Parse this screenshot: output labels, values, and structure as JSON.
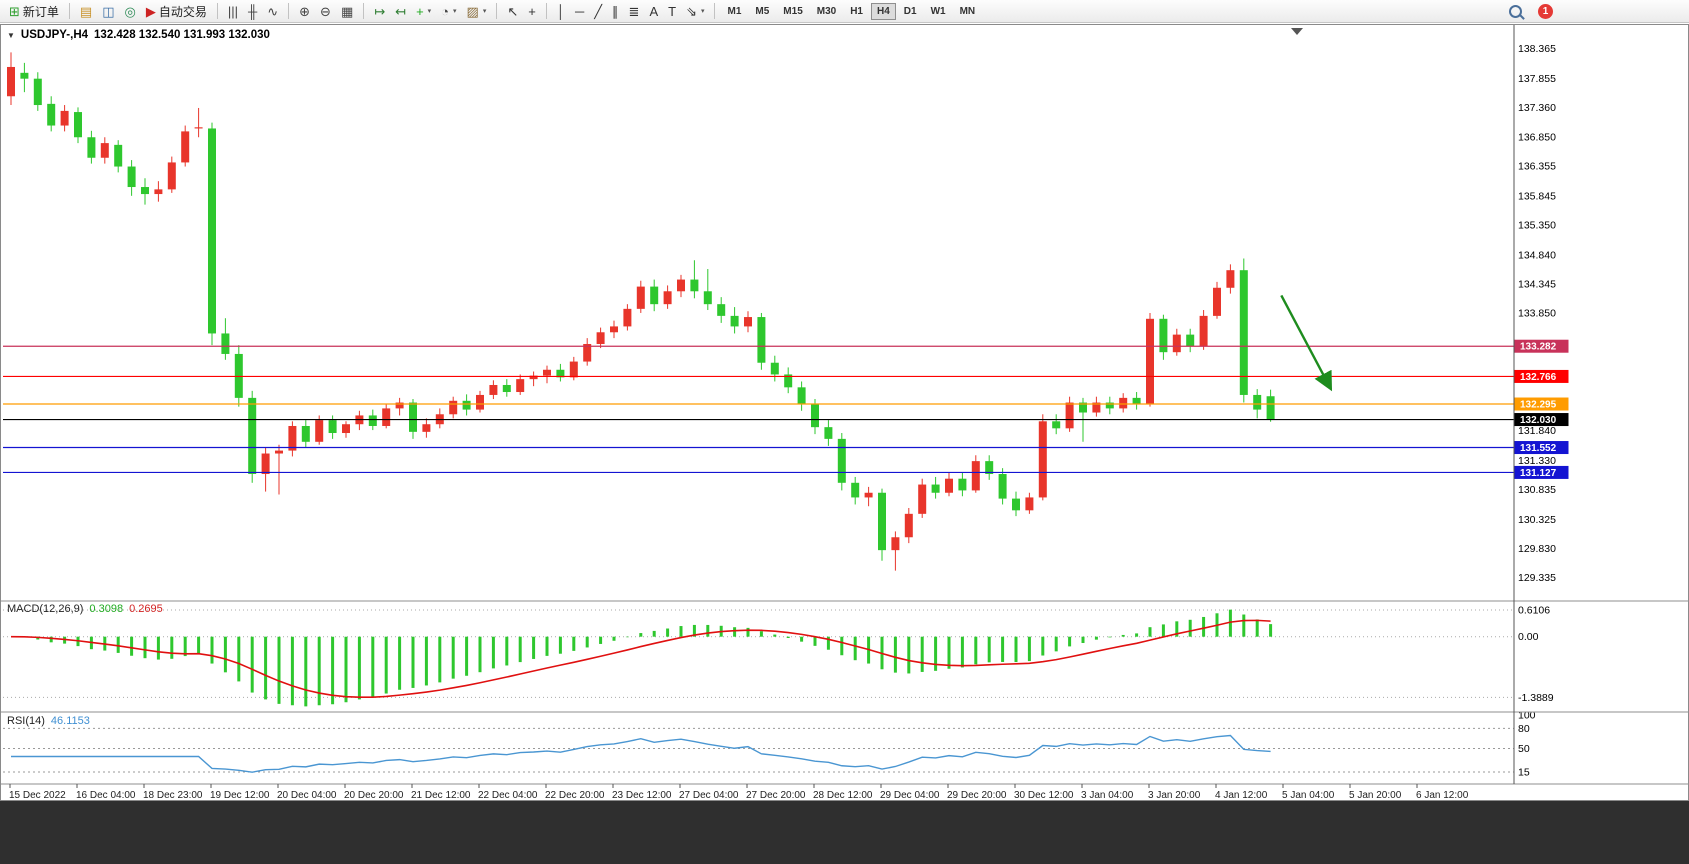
{
  "toolbar": {
    "badge_count": "1",
    "timeframes": [
      "M1",
      "M5",
      "M15",
      "M30",
      "H1",
      "H4",
      "D1",
      "W1",
      "MN"
    ],
    "active_timeframe": "H4",
    "items": [
      {
        "type": "button",
        "name": "new-order-button",
        "glyph": "⊞",
        "glyph_color": "#2e9e2e",
        "label": "新订单"
      },
      {
        "type": "sep"
      },
      {
        "type": "button",
        "name": "chart-profile-button",
        "glyph": "▤",
        "glyph_color": "#c8922a"
      },
      {
        "type": "button",
        "name": "market-watch-button",
        "glyph": "◫",
        "glyph_color": "#3a6ea5"
      },
      {
        "type": "button",
        "name": "navigator-button",
        "glyph": "◎",
        "glyph_color": "#2e8b57"
      },
      {
        "type": "button",
        "name": "autotrade-button",
        "glyph": "▶",
        "glyph_color": "#cc2222",
        "label": "自动交易"
      },
      {
        "type": "sep"
      },
      {
        "type": "button",
        "name": "bar-chart-button",
        "glyph": "|||",
        "glyph_color": "#444"
      },
      {
        "type": "button",
        "name": "candlestick-chart-button",
        "glyph": "╫",
        "glyph_color": "#444"
      },
      {
        "type": "button",
        "name": "line-chart-button",
        "glyph": "∿",
        "glyph_color": "#444"
      },
      {
        "type": "sep"
      },
      {
        "type": "button",
        "name": "zoom-in-button",
        "glyph": "⊕",
        "glyph_color": "#444"
      },
      {
        "type": "button",
        "name": "zoom-out-button",
        "glyph": "⊖",
        "glyph_color": "#444"
      },
      {
        "type": "button",
        "name": "tile-windows-button",
        "glyph": "▦",
        "glyph_color": "#444"
      },
      {
        "type": "sep"
      },
      {
        "type": "button",
        "name": "auto-scroll-button",
        "glyph": "↦",
        "glyph_color": "#2e7d32"
      },
      {
        "type": "button",
        "name": "chart-shift-button",
        "glyph": "↤",
        "glyph_color": "#2e7d32"
      },
      {
        "type": "button",
        "name": "indicators-button",
        "glyph": "+",
        "glyph_color": "#1faa1f",
        "caret": true
      },
      {
        "type": "button",
        "name": "periods-button",
        "glyph": "◔",
        "glyph_color": "#444",
        "caret": true
      },
      {
        "type": "button",
        "name": "templates-button",
        "glyph": "▨",
        "glyph_color": "#8a6d3b",
        "caret": true
      },
      {
        "type": "sep"
      },
      {
        "type": "button",
        "name": "cursor-button",
        "glyph": "↖",
        "glyph_color": "#333"
      },
      {
        "type": "button",
        "name": "crosshair-button",
        "glyph": "+",
        "glyph_color": "#333"
      },
      {
        "type": "sep"
      },
      {
        "type": "button",
        "name": "vertical-line-button",
        "glyph": "│",
        "glyph_color": "#333"
      },
      {
        "type": "button",
        "name": "horizontal-line-button",
        "glyph": "─",
        "glyph_color": "#333"
      },
      {
        "type": "button",
        "name": "trendline-button",
        "glyph": "╱",
        "glyph_color": "#333"
      },
      {
        "type": "button",
        "name": "channel-button",
        "glyph": "∥",
        "glyph_color": "#333",
        "rot": false
      },
      {
        "type": "button",
        "name": "fibonacci-button",
        "glyph": "≣",
        "glyph_color": "#333"
      },
      {
        "type": "button",
        "name": "text-button",
        "glyph": "A",
        "glyph_color": "#333"
      },
      {
        "type": "button",
        "name": "text-label-button",
        "glyph": "T",
        "glyph_color": "#333"
      },
      {
        "type": "button",
        "name": "arrows-button",
        "glyph": "⇘",
        "glyph_color": "#333",
        "caret": true
      },
      {
        "type": "sep"
      }
    ]
  },
  "chart": {
    "title_marker": "▼",
    "title": "USDJPY-,H4",
    "ohlc_text": "132.428 132.540 131.993 132.030",
    "macd_label": "MACD(12,26,9)",
    "macd_value_main": "0.3098",
    "macd_value_signal": "0.2695",
    "rsi_label": "RSI(14)",
    "rsi_value": "46.1153"
  },
  "chart_data": {
    "type": "candlestick",
    "symbol": "USDJPY-",
    "timeframe": "H4",
    "up_color": "#e8352b",
    "down_color": "#2ec72e",
    "ylim": [
      129.0,
      138.63
    ],
    "price_axis_labels": [
      "138.365",
      "137.855",
      "137.360",
      "136.850",
      "136.355",
      "135.845",
      "135.350",
      "134.840",
      "134.345",
      "133.850",
      "131.840",
      "131.330",
      "130.835",
      "130.325",
      "129.830",
      "129.335"
    ],
    "candles": [
      [
        137.55,
        138.3,
        137.4,
        138.05
      ],
      [
        137.95,
        138.12,
        137.62,
        137.85
      ],
      [
        137.85,
        137.96,
        137.3,
        137.4
      ],
      [
        137.42,
        137.55,
        136.95,
        137.05
      ],
      [
        137.05,
        137.4,
        136.95,
        137.3
      ],
      [
        137.28,
        137.36,
        136.75,
        136.85
      ],
      [
        136.85,
        136.96,
        136.4,
        136.5
      ],
      [
        136.5,
        136.85,
        136.4,
        136.75
      ],
      [
        136.72,
        136.8,
        136.25,
        136.35
      ],
      [
        136.35,
        136.46,
        135.85,
        136.0
      ],
      [
        136.0,
        136.15,
        135.7,
        135.88
      ],
      [
        135.88,
        136.1,
        135.75,
        135.96
      ],
      [
        135.96,
        136.52,
        135.9,
        136.42
      ],
      [
        136.42,
        137.05,
        136.35,
        136.95
      ],
      [
        137.0,
        137.35,
        136.85,
        137.02
      ],
      [
        137.0,
        137.1,
        133.3,
        133.5
      ],
      [
        133.5,
        133.76,
        133.05,
        133.15
      ],
      [
        133.15,
        133.3,
        132.25,
        132.4
      ],
      [
        132.4,
        132.52,
        130.95,
        131.1
      ],
      [
        131.1,
        131.56,
        130.8,
        131.45
      ],
      [
        131.45,
        131.6,
        130.75,
        131.5
      ],
      [
        131.5,
        132.0,
        131.4,
        131.92
      ],
      [
        131.92,
        132.02,
        131.55,
        131.65
      ],
      [
        131.65,
        132.1,
        131.6,
        132.02
      ],
      [
        132.02,
        132.1,
        131.7,
        131.8
      ],
      [
        131.8,
        132.0,
        131.72,
        131.95
      ],
      [
        131.95,
        132.18,
        131.85,
        132.1
      ],
      [
        132.1,
        132.2,
        131.85,
        131.92
      ],
      [
        131.92,
        132.3,
        131.88,
        132.22
      ],
      [
        132.22,
        132.4,
        132.1,
        132.32
      ],
      [
        132.32,
        132.38,
        131.7,
        131.82
      ],
      [
        131.82,
        132.05,
        131.72,
        131.95
      ],
      [
        131.95,
        132.22,
        131.88,
        132.12
      ],
      [
        132.12,
        132.42,
        132.05,
        132.35
      ],
      [
        132.35,
        132.46,
        132.1,
        132.2
      ],
      [
        132.2,
        132.52,
        132.15,
        132.45
      ],
      [
        132.45,
        132.7,
        132.38,
        132.62
      ],
      [
        132.62,
        132.72,
        132.42,
        132.5
      ],
      [
        132.5,
        132.8,
        132.45,
        132.72
      ],
      [
        132.72,
        132.85,
        132.6,
        132.78
      ],
      [
        132.78,
        132.95,
        132.65,
        132.88
      ],
      [
        132.88,
        132.98,
        132.68,
        132.75
      ],
      [
        132.75,
        133.1,
        132.7,
        133.02
      ],
      [
        133.02,
        133.42,
        132.95,
        133.32
      ],
      [
        133.32,
        133.6,
        133.25,
        133.52
      ],
      [
        133.52,
        133.72,
        133.42,
        133.62
      ],
      [
        133.62,
        134.0,
        133.55,
        133.92
      ],
      [
        133.92,
        134.4,
        133.85,
        134.3
      ],
      [
        134.3,
        134.42,
        133.88,
        134.0
      ],
      [
        134.0,
        134.32,
        133.92,
        134.22
      ],
      [
        134.22,
        134.5,
        134.12,
        134.42
      ],
      [
        134.42,
        134.75,
        134.1,
        134.22
      ],
      [
        134.22,
        134.6,
        133.9,
        134.0
      ],
      [
        134.0,
        134.12,
        133.68,
        133.8
      ],
      [
        133.8,
        133.95,
        133.5,
        133.62
      ],
      [
        133.62,
        133.88,
        133.52,
        133.78
      ],
      [
        133.78,
        133.85,
        132.88,
        133.0
      ],
      [
        133.0,
        133.12,
        132.68,
        132.8
      ],
      [
        132.8,
        132.92,
        132.48,
        132.58
      ],
      [
        132.58,
        132.68,
        132.18,
        132.3
      ],
      [
        132.3,
        132.38,
        131.78,
        131.9
      ],
      [
        131.9,
        132.02,
        131.58,
        131.7
      ],
      [
        131.7,
        131.8,
        130.82,
        130.95
      ],
      [
        130.95,
        131.05,
        130.58,
        130.7
      ],
      [
        130.7,
        130.88,
        130.55,
        130.78
      ],
      [
        130.78,
        130.85,
        129.62,
        129.8
      ],
      [
        129.8,
        130.12,
        129.45,
        130.02
      ],
      [
        130.02,
        130.52,
        129.92,
        130.42
      ],
      [
        130.42,
        131.02,
        130.35,
        130.92
      ],
      [
        130.92,
        131.05,
        130.68,
        130.78
      ],
      [
        130.78,
        131.12,
        130.72,
        131.02
      ],
      [
        131.02,
        131.12,
        130.72,
        130.82
      ],
      [
        130.82,
        131.42,
        130.78,
        131.32
      ],
      [
        131.32,
        131.42,
        131.0,
        131.1
      ],
      [
        131.1,
        131.2,
        130.58,
        130.68
      ],
      [
        130.68,
        130.8,
        130.38,
        130.48
      ],
      [
        130.48,
        130.78,
        130.42,
        130.7
      ],
      [
        130.7,
        132.12,
        130.65,
        132.0
      ],
      [
        132.0,
        132.12,
        131.78,
        131.88
      ],
      [
        131.88,
        132.42,
        131.82,
        132.32
      ],
      [
        132.32,
        132.4,
        131.65,
        132.15
      ],
      [
        132.15,
        132.42,
        132.08,
        132.32
      ],
      [
        132.32,
        132.42,
        132.12,
        132.22
      ],
      [
        132.22,
        132.48,
        132.15,
        132.4
      ],
      [
        132.4,
        132.5,
        132.2,
        132.3
      ],
      [
        132.3,
        133.85,
        132.25,
        133.75
      ],
      [
        133.75,
        133.82,
        133.05,
        133.18
      ],
      [
        133.18,
        133.58,
        133.12,
        133.48
      ],
      [
        133.48,
        133.58,
        133.18,
        133.28
      ],
      [
        133.28,
        133.9,
        133.22,
        133.8
      ],
      [
        133.8,
        134.38,
        133.75,
        134.28
      ],
      [
        134.28,
        134.68,
        134.18,
        134.58
      ],
      [
        134.58,
        134.78,
        132.32,
        132.45
      ],
      [
        132.45,
        132.55,
        132.05,
        132.2
      ],
      [
        132.428,
        132.54,
        131.993,
        132.03
      ]
    ],
    "hlines": [
      {
        "price": 133.282,
        "label": "133.282",
        "color": "#c8325a"
      },
      {
        "price": 132.766,
        "label": "132.766",
        "color": "#ff0000"
      },
      {
        "price": 132.295,
        "label": "132.295",
        "color": "#ff9c00"
      },
      {
        "price": 132.03,
        "label": "132.030",
        "color": "#000000"
      },
      {
        "price": 131.552,
        "label": "131.552",
        "color": "#1414d2"
      },
      {
        "price": 131.127,
        "label": "131.127",
        "color": "#1414d2"
      }
    ],
    "trend_arrow": {
      "x1_index": 94.8,
      "y1_price": 134.15,
      "x2_index": 98.5,
      "y2_price": 132.55,
      "color": "#1e8c1e"
    },
    "macd": {
      "params": "12,26,9",
      "axis_labels": [
        "0.6106",
        "0.00",
        "-1.3889"
      ],
      "color_hist": "#2ec72e",
      "color_signal": "#e01010"
    },
    "rsi": {
      "period": 14,
      "axis_labels": [
        "100",
        "80",
        "50",
        "15"
      ],
      "levels": [
        80,
        50,
        15
      ],
      "color": "#4a96d2"
    },
    "time_labels": [
      "15 Dec 2022",
      "16 Dec 04:00",
      "18 Dec 23:00",
      "19 Dec 12:00",
      "20 Dec 04:00",
      "20 Dec 20:00",
      "21 Dec 12:00",
      "22 Dec 04:00",
      "22 Dec 20:00",
      "23 Dec 12:00",
      "27 Dec 04:00",
      "27 Dec 20:00",
      "28 Dec 12:00",
      "29 Dec 04:00",
      "29 Dec 20:00",
      "30 Dec 12:00",
      "3 Jan 04:00",
      "3 Jan 20:00",
      "4 Jan 12:00",
      "5 Jan 04:00",
      "5 Jan 20:00",
      "6 Jan 12:00"
    ]
  }
}
